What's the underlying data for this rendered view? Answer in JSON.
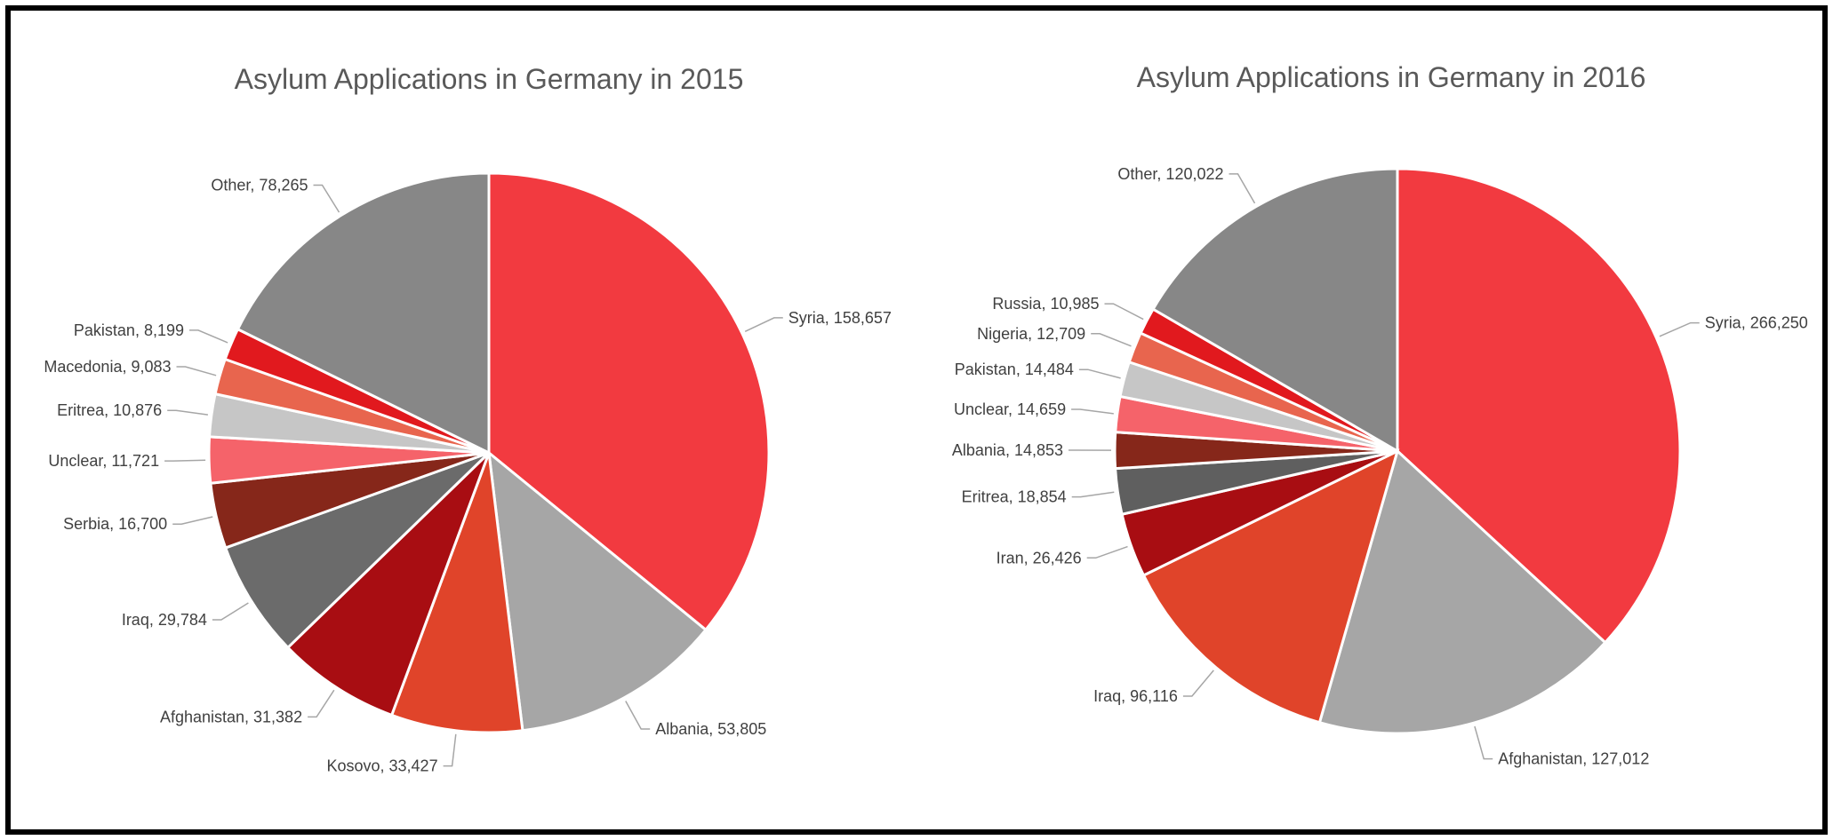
{
  "chart_data": [
    {
      "type": "pie",
      "title": "Asylum Applications in Germany in 2015",
      "slices": [
        {
          "label": "Syria",
          "value": 158657,
          "value_text": "158,657",
          "color": "#f23a40"
        },
        {
          "label": "Albania",
          "value": 53805,
          "value_text": "53,805",
          "color": "#a6a6a6"
        },
        {
          "label": "Kosovo",
          "value": 33427,
          "value_text": "33,427",
          "color": "#e0442a"
        },
        {
          "label": "Afghanistan",
          "value": 31382,
          "value_text": "31,382",
          "color": "#a80d12"
        },
        {
          "label": "Iraq",
          "value": 29784,
          "value_text": "29,784",
          "color": "#6b6b6b"
        },
        {
          "label": "Serbia",
          "value": 16700,
          "value_text": "16,700",
          "color": "#86271a"
        },
        {
          "label": "Unclear",
          "value": 11721,
          "value_text": "11,721",
          "color": "#f5636a"
        },
        {
          "label": "Eritrea",
          "value": 10876,
          "value_text": "10,876",
          "color": "#c6c6c6"
        },
        {
          "label": "Macedonia",
          "value": 9083,
          "value_text": "9,083",
          "color": "#e8654e"
        },
        {
          "label": "Pakistan",
          "value": 8199,
          "value_text": "8,199",
          "color": "#e1191e"
        },
        {
          "label": "Other",
          "value": 78265,
          "value_text": "78,265",
          "color": "#878787"
        }
      ]
    },
    {
      "type": "pie",
      "title": "Asylum Applications in Germany in 2016",
      "slices": [
        {
          "label": "Syria",
          "value": 266250,
          "value_text": "266,250",
          "color": "#f23a40"
        },
        {
          "label": "Afghanistan",
          "value": 127012,
          "value_text": "127,012",
          "color": "#a6a6a6"
        },
        {
          "label": "Iraq",
          "value": 96116,
          "value_text": "96,116",
          "color": "#e0442a"
        },
        {
          "label": "Iran",
          "value": 26426,
          "value_text": "26,426",
          "color": "#a80d12"
        },
        {
          "label": "Eritrea",
          "value": 18854,
          "value_text": "18,854",
          "color": "#5f5f5f"
        },
        {
          "label": "Albania",
          "value": 14853,
          "value_text": "14,853",
          "color": "#86271a"
        },
        {
          "label": "Unclear",
          "value": 14659,
          "value_text": "14,659",
          "color": "#f5636a"
        },
        {
          "label": "Pakistan",
          "value": 14484,
          "value_text": "14,484",
          "color": "#c6c6c6"
        },
        {
          "label": "Nigeria",
          "value": 12709,
          "value_text": "12,709",
          "color": "#e8654e"
        },
        {
          "label": "Russia",
          "value": 10985,
          "value_text": "10,985",
          "color": "#e1191e"
        },
        {
          "label": "Other",
          "value": 120022,
          "value_text": "120,022",
          "color": "#878787"
        }
      ]
    }
  ]
}
